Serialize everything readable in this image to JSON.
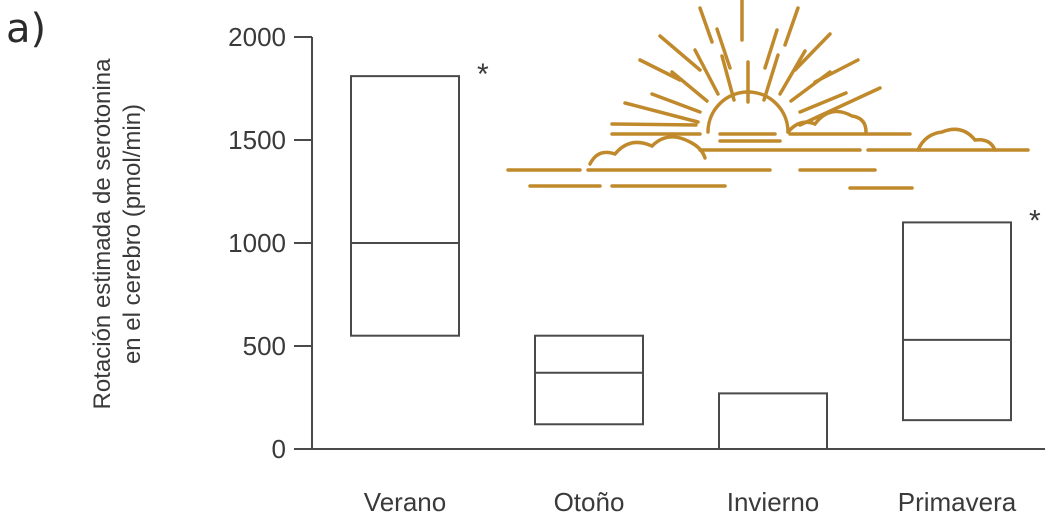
{
  "panel_label": "a)",
  "accent_color": "#c08a2c",
  "chart_data": {
    "type": "box",
    "title": "",
    "xlabel": "",
    "ylabel": [
      "Rotación estimada de serotonina",
      "en el cerebro (pmol/min)"
    ],
    "ylim": [
      0,
      2000
    ],
    "yticks": [
      0,
      500,
      1000,
      1500,
      2000
    ],
    "categories": [
      "Verano",
      "Otoño",
      "Invierno",
      "Primavera"
    ],
    "boxes": [
      {
        "category": "Verano",
        "low": 550,
        "median": 1000,
        "high": 1810,
        "significance": "*"
      },
      {
        "category": "Otoño",
        "low": 120,
        "median": 370,
        "high": 550,
        "significance": ""
      },
      {
        "category": "Invierno",
        "low": 0,
        "median": null,
        "high": 270,
        "significance": ""
      },
      {
        "category": "Primavera",
        "low": 140,
        "median": 530,
        "high": 1100,
        "significance": "*"
      }
    ],
    "grid": false,
    "decoration": "sun-and-clouds-icon"
  }
}
